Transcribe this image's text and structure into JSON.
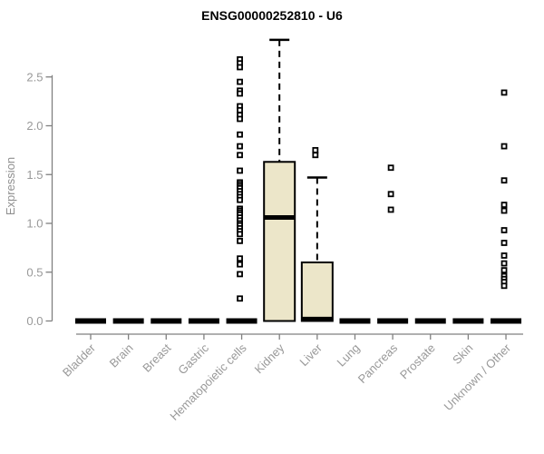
{
  "title": "ENSG00000252810 - U6",
  "colors": {
    "background": "#ffffff",
    "title_text": "#000000",
    "axis_line": "#808080",
    "tick_text": "#999999",
    "axis_label_text": "#909090",
    "box_fill": "#ece6c9",
    "box_stroke": "#000000",
    "median": "#000000",
    "outlier_stroke": "#000000",
    "outlier_fill": "#ffffff"
  },
  "chart_data": {
    "type": "boxplot",
    "title": "ENSG00000252810 - U6",
    "ylabel": "Expression",
    "xlabel": "",
    "ylim": [
      0,
      2.95
    ],
    "yticks": [
      "0.0",
      "0.5",
      "1.0",
      "1.5",
      "2.0",
      "2.5"
    ],
    "ytick_values": [
      0,
      0.5,
      1.0,
      1.5,
      2.0,
      2.5
    ],
    "grid": "off",
    "legend": "none",
    "categories": [
      "Bladder",
      "Brain",
      "Breast",
      "Gastric",
      "Hematopoietic cells",
      "Kidney",
      "Liver",
      "Lung",
      "Pancreas",
      "Prostate",
      "Skin",
      "Unknown / Other"
    ],
    "boxes": [
      {
        "label": "Bladder",
        "q1": 0,
        "median": 0,
        "q3": 0,
        "whisker_low": 0,
        "whisker_high": 0,
        "outliers": []
      },
      {
        "label": "Brain",
        "q1": 0,
        "median": 0,
        "q3": 0,
        "whisker_low": 0,
        "whisker_high": 0,
        "outliers": []
      },
      {
        "label": "Breast",
        "q1": 0,
        "median": 0,
        "q3": 0,
        "whisker_low": 0,
        "whisker_high": 0,
        "outliers": []
      },
      {
        "label": "Gastric",
        "q1": 0,
        "median": 0,
        "q3": 0,
        "whisker_low": 0,
        "whisker_high": 0,
        "outliers": []
      },
      {
        "label": "Hematopoietic cells",
        "q1": 0,
        "median": 0,
        "q3": 0,
        "whisker_low": 0,
        "whisker_high": 0,
        "outliers": [
          2.68,
          2.64,
          2.6,
          2.45,
          2.36,
          2.33,
          2.2,
          2.16,
          2.11,
          2.07,
          1.91,
          1.79,
          1.7,
          1.54,
          1.42,
          1.4,
          1.38,
          1.36,
          1.33,
          1.3,
          1.27,
          1.24,
          1.15,
          1.13,
          1.11,
          1.09,
          1.06,
          1.03,
          1.0,
          0.98,
          0.95,
          0.92,
          0.89,
          0.82,
          0.64,
          0.58,
          0.48,
          0.23
        ]
      },
      {
        "label": "Kidney",
        "q1": 0,
        "median": 1.06,
        "q3": 1.63,
        "whisker_low": 0,
        "whisker_high": 2.88,
        "outliers": []
      },
      {
        "label": "Liver",
        "q1": 0,
        "median": 0.02,
        "q3": 0.6,
        "whisker_low": 0,
        "whisker_high": 1.47,
        "outliers": [
          1.75,
          1.7
        ]
      },
      {
        "label": "Lung",
        "q1": 0,
        "median": 0,
        "q3": 0,
        "whisker_low": 0,
        "whisker_high": 0,
        "outliers": []
      },
      {
        "label": "Pancreas",
        "q1": 0,
        "median": 0,
        "q3": 0,
        "whisker_low": 0,
        "whisker_high": 0,
        "outliers": [
          1.57,
          1.3,
          1.14
        ]
      },
      {
        "label": "Prostate",
        "q1": 0,
        "median": 0,
        "q3": 0,
        "whisker_low": 0,
        "whisker_high": 0,
        "outliers": []
      },
      {
        "label": "Skin",
        "q1": 0,
        "median": 0,
        "q3": 0,
        "whisker_low": 0,
        "whisker_high": 0,
        "outliers": []
      },
      {
        "label": "Unknown / Other",
        "q1": 0,
        "median": 0,
        "q3": 0,
        "whisker_low": 0,
        "whisker_high": 0,
        "outliers": [
          2.34,
          1.79,
          1.44,
          1.19,
          1.13,
          0.93,
          0.8,
          0.67,
          0.59,
          0.52,
          0.46,
          0.43,
          0.4,
          0.36
        ]
      }
    ]
  }
}
